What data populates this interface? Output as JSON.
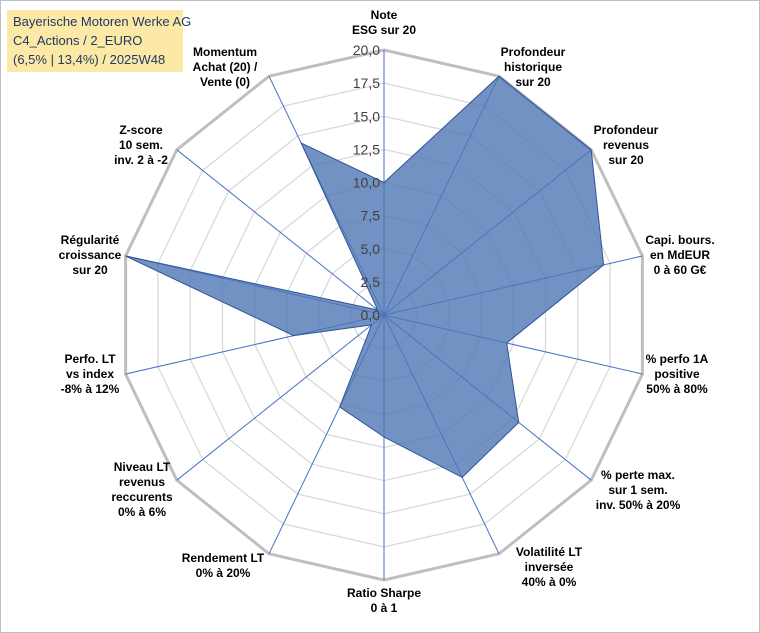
{
  "title_lines": [
    "Bayerische Motoren Werke AG",
    "C4_Actions / 2_EURO",
    "(6,5% | 13,4%) / 2025W48"
  ],
  "chart_data": {
    "type": "radar",
    "r_range": [
      0,
      20
    ],
    "tick_labels": [
      "0,0",
      "2,5",
      "5,0",
      "7,5",
      "10,0",
      "12,5",
      "15,0",
      "17,5",
      "20,0"
    ],
    "axes": [
      [
        "Note",
        "ESG sur 20"
      ],
      [
        "Profondeur",
        "historique",
        "sur 20"
      ],
      [
        "Profondeur",
        "revenus",
        "sur 20"
      ],
      [
        "Capi. bours.",
        "en MdEUR",
        "0 à 60 G€"
      ],
      [
        "% perfo 1A",
        "positive",
        "50% à 80%"
      ],
      [
        "% perte max.",
        "sur 1 sem.",
        "inv. 50% à 20%"
      ],
      [
        "Volatilité LT",
        "inversée",
        "40% à 0%"
      ],
      [
        "Ratio Sharpe",
        "0 à 1"
      ],
      [
        "Rendement LT",
        "0% à 20%"
      ],
      [
        "Niveau LT",
        "revenus",
        "reccurents",
        "0% à 6%"
      ],
      [
        "Perfo. LT",
        "vs index",
        "-8% à 12%"
      ],
      [
        "Régularité",
        "croissance",
        "sur 20"
      ],
      [
        "Z-score",
        "10 sem.",
        "inv. 2 à -2"
      ],
      [
        "Momentum",
        "Achat (20) /",
        "Vente (0)"
      ]
    ],
    "series": [
      {
        "name": "Bayerische Motoren Werke AG",
        "values": [
          10,
          20,
          20,
          17,
          9.5,
          13,
          13.6,
          9.2,
          7.7,
          1.2,
          7,
          20,
          0.6,
          14.4
        ]
      }
    ],
    "colors": {
      "fill": "#4f77b4",
      "fill_opacity": "0.8",
      "stroke": "#2f5597",
      "grid": "#d9d9d9",
      "spoke": "#4472c4",
      "outer": "#bfbfbf"
    }
  }
}
